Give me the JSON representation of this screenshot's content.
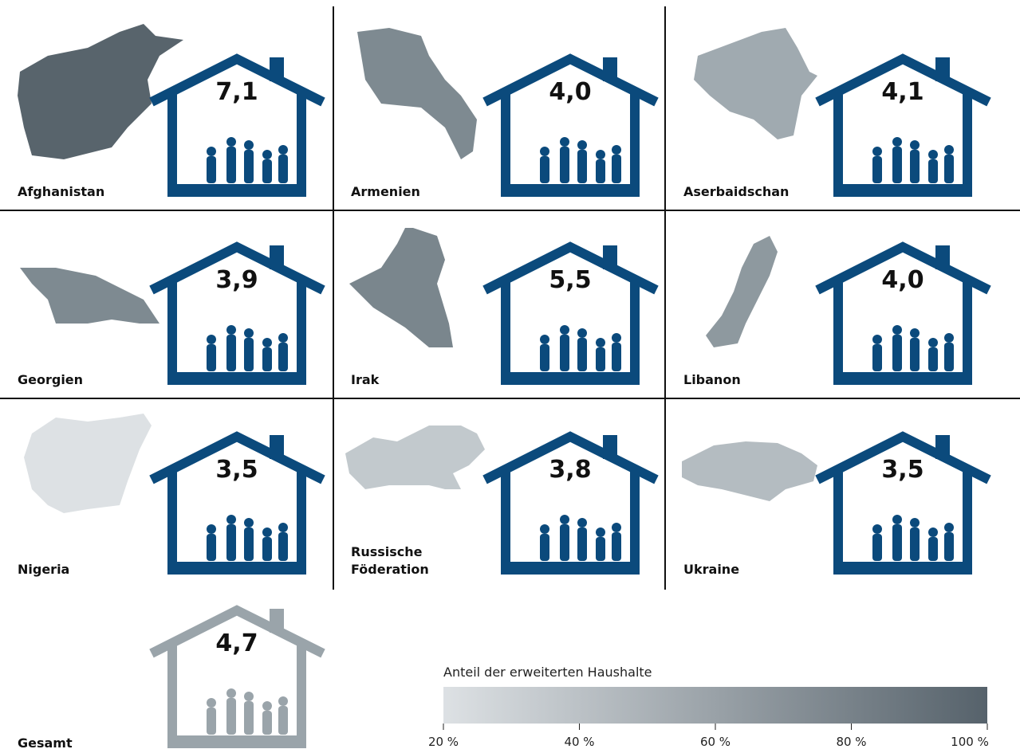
{
  "panels": [
    {
      "name": "Afghanistan",
      "value": "7,1",
      "color": "#58646c"
    },
    {
      "name": "Armenien",
      "value": "4,0",
      "color": "#7e8a91"
    },
    {
      "name": "Aserbaidschan",
      "value": "4,1",
      "color": "#a0aab0"
    },
    {
      "name": "Georgien",
      "value": "3,9",
      "color": "#7e8a91"
    },
    {
      "name": "Irak",
      "value": "5,5",
      "color": "#7a868d"
    },
    {
      "name": "Libanon",
      "value": "4,0",
      "color": "#8e999f"
    },
    {
      "name": "Nigeria",
      "value": "3,5",
      "color": "#dde1e4"
    },
    {
      "name": "Russische Föderation",
      "value": "3,8",
      "color": "#c2c9cd"
    },
    {
      "name": "Ukraine",
      "value": "3,5",
      "color": "#b4bcc1"
    }
  ],
  "total": {
    "name": "Gesamt",
    "value": "4,7"
  },
  "legend": {
    "title": "Anteil der erweiterten Haushalte",
    "ticks": [
      "20 %",
      "40 %",
      "60 %",
      "80 %",
      "100 %"
    ],
    "colors": [
      "#dde1e4",
      "#56626b"
    ]
  }
}
